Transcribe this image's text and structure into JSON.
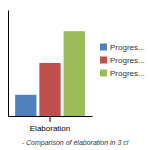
{
  "chart_data": {
    "type": "bar",
    "title": "- Comparison of elaboration in 3 cl",
    "categories": [
      "Elaboration"
    ],
    "series": [
      {
        "name": "Progres...",
        "color": "#4f81bd",
        "values": [
          1
        ]
      },
      {
        "name": "Progres...",
        "color": "#c0504d",
        "values": [
          2.5
        ]
      },
      {
        "name": "Progres...",
        "color": "#9bbb59",
        "values": [
          4.0
        ]
      }
    ],
    "ylim": [
      0,
      5.0
    ],
    "yticks": [],
    "grid": false,
    "tick_labels": "x",
    "legend": "right"
  }
}
